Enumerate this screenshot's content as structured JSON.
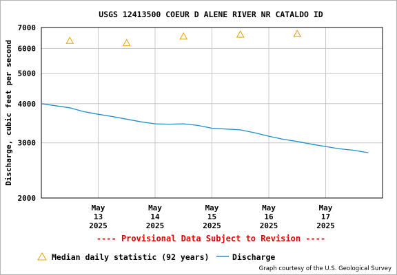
{
  "chart_data": {
    "type": "line",
    "title": "USGS 12413500 COEUR D ALENE RIVER NR CATALDO ID",
    "ylabel": "Discharge, cubic feet per second",
    "xlabel": "",
    "y_scale": "log",
    "ylim": [
      2000,
      7000
    ],
    "y_ticks": [
      2000,
      3000,
      4000,
      5000,
      6000,
      7000
    ],
    "x_domain": [
      "2025-05-12",
      "2025-05-18"
    ],
    "x_ticks": [
      {
        "date": "2025-05-13",
        "line1": "May",
        "line2": "13",
        "line3": "2025"
      },
      {
        "date": "2025-05-14",
        "line1": "May",
        "line2": "14",
        "line3": "2025"
      },
      {
        "date": "2025-05-15",
        "line1": "May",
        "line2": "15",
        "line3": "2025"
      },
      {
        "date": "2025-05-16",
        "line1": "May",
        "line2": "16",
        "line3": "2025"
      },
      {
        "date": "2025-05-17",
        "line1": "May",
        "line2": "17",
        "line3": "2025"
      }
    ],
    "grid": true,
    "series": [
      {
        "name": "Discharge",
        "type": "line",
        "color": "#1f8dc6",
        "points": [
          {
            "x": "2025-05-12 00:00",
            "y": 4000
          },
          {
            "x": "2025-05-12 06:00",
            "y": 3940
          },
          {
            "x": "2025-05-12 12:00",
            "y": 3880
          },
          {
            "x": "2025-05-12 18:00",
            "y": 3770
          },
          {
            "x": "2025-05-13 00:00",
            "y": 3700
          },
          {
            "x": "2025-05-13 06:00",
            "y": 3640
          },
          {
            "x": "2025-05-13 12:00",
            "y": 3570
          },
          {
            "x": "2025-05-13 18:00",
            "y": 3500
          },
          {
            "x": "2025-05-14 00:00",
            "y": 3450
          },
          {
            "x": "2025-05-14 06:00",
            "y": 3440
          },
          {
            "x": "2025-05-14 12:00",
            "y": 3450
          },
          {
            "x": "2025-05-14 18:00",
            "y": 3410
          },
          {
            "x": "2025-05-15 00:00",
            "y": 3340
          },
          {
            "x": "2025-05-15 06:00",
            "y": 3320
          },
          {
            "x": "2025-05-15 12:00",
            "y": 3300
          },
          {
            "x": "2025-05-15 18:00",
            "y": 3230
          },
          {
            "x": "2025-05-16 00:00",
            "y": 3150
          },
          {
            "x": "2025-05-16 06:00",
            "y": 3080
          },
          {
            "x": "2025-05-16 12:00",
            "y": 3030
          },
          {
            "x": "2025-05-16 18:00",
            "y": 2970
          },
          {
            "x": "2025-05-17 00:00",
            "y": 2920
          },
          {
            "x": "2025-05-17 06:00",
            "y": 2870
          },
          {
            "x": "2025-05-17 12:00",
            "y": 2840
          },
          {
            "x": "2025-05-17 18:00",
            "y": 2790
          }
        ]
      },
      {
        "name": "Median daily statistic (92 years)",
        "type": "scatter",
        "marker": "triangle",
        "color": "#e8a000",
        "points": [
          {
            "x": "2025-05-12 12:00",
            "y": 6350
          },
          {
            "x": "2025-05-13 12:00",
            "y": 6250
          },
          {
            "x": "2025-05-14 12:00",
            "y": 6560
          },
          {
            "x": "2025-05-15 12:00",
            "y": 6650
          },
          {
            "x": "2025-05-16 12:00",
            "y": 6680
          }
        ]
      }
    ],
    "annotation": "---- Provisional Data Subject to Revision ----",
    "legend_placement": "bottom-left",
    "credit": "Graph courtesy of the U.S. Geological Survey"
  }
}
